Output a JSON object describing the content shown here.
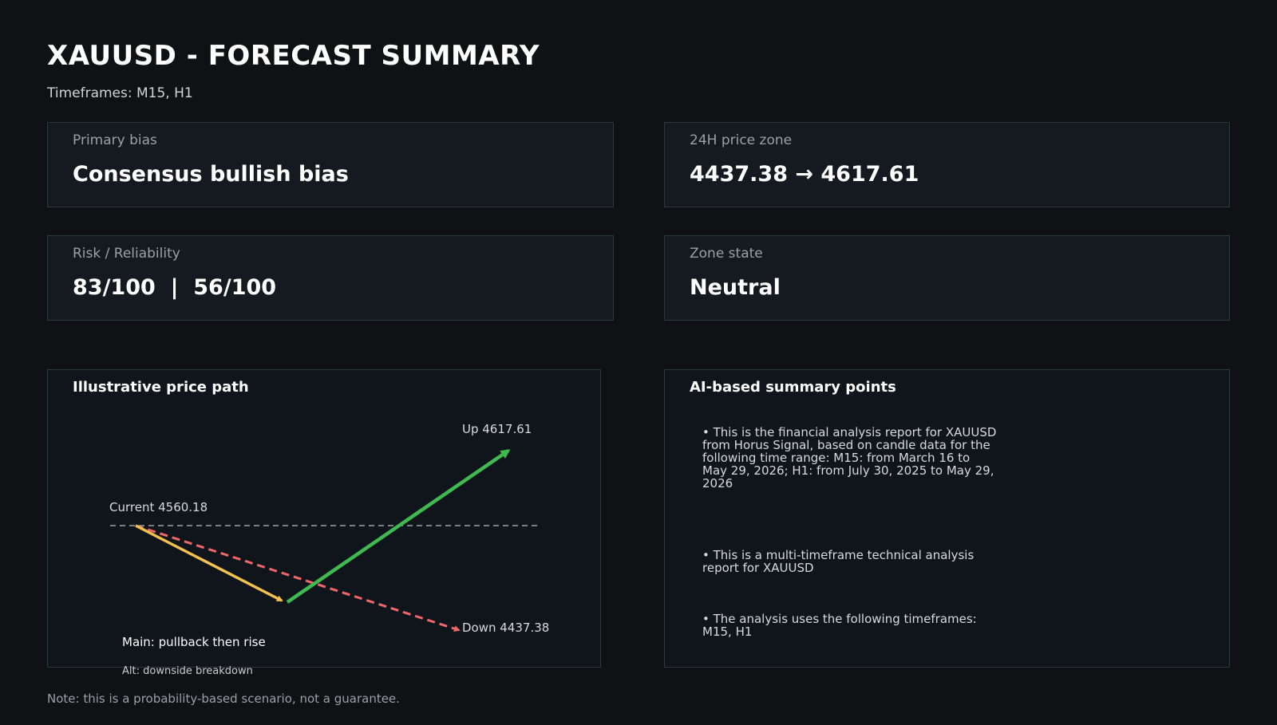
{
  "header": {
    "title": "XAUUSD - FORECAST SUMMARY",
    "timeframes": "Timeframes: M15, H1"
  },
  "cards": {
    "primary_bias": {
      "label": "Primary bias",
      "value": "Consensus bullish bias"
    },
    "price_zone": {
      "label": "24H price zone",
      "value": "4437.38 → 4617.61"
    },
    "risk": {
      "label": "Risk / Reliability",
      "value": "83/100  |  56/100"
    },
    "zone_state": {
      "label": "Zone state",
      "value": "Neutral"
    }
  },
  "price_path": {
    "title": "Illustrative price path",
    "current_label": "Current 4560.18",
    "up_label": "Up 4617.61",
    "down_label": "Down 4437.38",
    "main_label": "Main: pullback then rise",
    "alt_label": "Alt: downside breakdown",
    "colors": {
      "main_down": "#f2c14e",
      "main_up": "#3fb950",
      "alt": "#f0676b",
      "current_line": "#9aa0a6"
    }
  },
  "summary": {
    "title": "AI-based summary points",
    "points": [
      "• This is the financial analysis report for XAUUSD from Horus Signal, based on candle data for the following time range: M15: from March 16 to May 29, 2026; H1: from July 30, 2025 to May 29, 2026",
      "• This is a multi-timeframe technical analysis report for XAUUSD",
      "• The analysis uses the following timeframes: M15, H1"
    ]
  },
  "footer": {
    "note": "Note: this is a probability-based scenario, not a guarantee."
  }
}
